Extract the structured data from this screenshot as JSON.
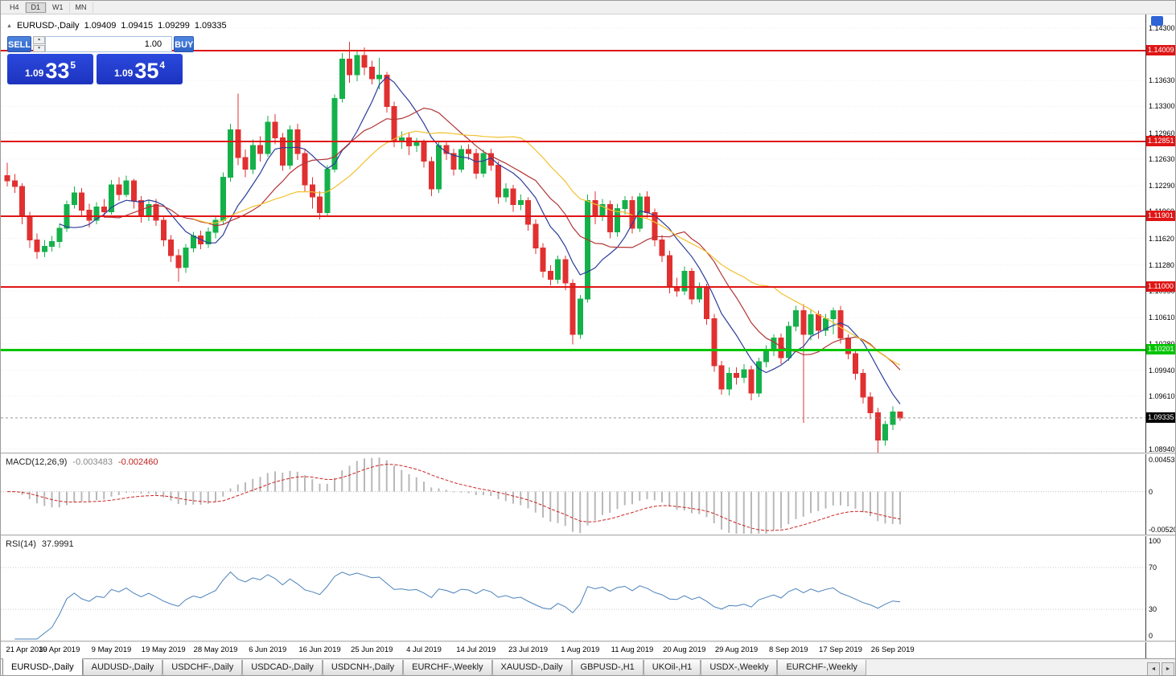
{
  "toolbar": {
    "buttons": [
      {
        "label": "H4",
        "active": false
      },
      {
        "label": "D1",
        "active": true
      },
      {
        "label": "W1",
        "active": false
      },
      {
        "label": "MN",
        "active": false
      }
    ]
  },
  "quote_header": {
    "collapse_icon": "▲",
    "symbol": "EURUSD-,Daily",
    "open": "1.09409",
    "high": "1.09415",
    "low": "1.09299",
    "close": "1.09335"
  },
  "trade_panel": {
    "sell_label": "SELL",
    "buy_label": "BUY",
    "volume": "1.00",
    "spin_up": "▲",
    "spin_down": "▼",
    "sell_price": {
      "prefix": "1.09",
      "big": "33",
      "pip": "5"
    },
    "buy_price": {
      "prefix": "1.09",
      "big": "35",
      "pip": "4"
    }
  },
  "colors": {
    "bull": "#14b14b",
    "bear": "#e13030",
    "macd_hist": "#b8b8b8",
    "macd_signal": "#cc2222",
    "rsi": "#4a81bb",
    "grid": "#ededed"
  },
  "chart_data": {
    "type": "candlestick",
    "title": "EURUSD-,Daily",
    "x_labels": [
      "21 Apr 2019",
      "30 Apr 2019",
      "9 May 2019",
      "19 May 2019",
      "28 May 2019",
      "6 Jun 2019",
      "16 Jun 2019",
      "25 Jun 2019",
      "4 Jul 2019",
      "14 Jul 2019",
      "23 Jul 2019",
      "1 Aug 2019",
      "11 Aug 2019",
      "20 Aug 2019",
      "29 Aug 2019",
      "8 Sep 2019",
      "17 Sep 2019",
      "26 Sep 2019"
    ],
    "candles_per_label": 7,
    "y_axis_labels": [
      "1.14300",
      "1.13630",
      "1.13300",
      "1.12960",
      "1.12630",
      "1.12290",
      "1.11960",
      "1.11620",
      "1.11280",
      "1.10950",
      "1.10610",
      "1.10280",
      "1.09940",
      "1.09610",
      "1.08940"
    ],
    "y_range": [
      1.08894,
      1.1447
    ],
    "hlines": [
      {
        "price": 1.14009,
        "label": "1.14009",
        "color": "#e01515",
        "width": 2,
        "role": "resistance-line"
      },
      {
        "price": 1.12851,
        "label": "1.12851",
        "color": "#e01515",
        "width": 2,
        "role": "resistance-line"
      },
      {
        "price": 1.11901,
        "label": "1.11901",
        "color": "#e01515",
        "width": 2,
        "role": "resistance-line"
      },
      {
        "price": 1.11,
        "label": "1.11000",
        "color": "#e01515",
        "width": 2,
        "role": "resistance-line"
      },
      {
        "price": 1.10201,
        "label": "1.10201",
        "color": "#00c400",
        "width": 3,
        "role": "support-line"
      }
    ],
    "current_price": {
      "value": 1.09335,
      "label": "1.09335"
    },
    "moving_averages": [
      {
        "period": 8,
        "color": "#2b3d9b"
      },
      {
        "period": 14,
        "color": "#b23535"
      },
      {
        "period": 26,
        "color": "#f2c12e"
      }
    ],
    "candles": [
      [
        1.1242,
        1.1258,
        1.1228,
        1.1235
      ],
      [
        1.1235,
        1.1244,
        1.122,
        1.1228
      ],
      [
        1.1228,
        1.1232,
        1.118,
        1.119
      ],
      [
        1.119,
        1.1196,
        1.115,
        1.116
      ],
      [
        1.116,
        1.1168,
        1.1136,
        1.1145
      ],
      [
        1.1145,
        1.116,
        1.1138,
        1.1152
      ],
      [
        1.1152,
        1.1165,
        1.1145,
        1.1158
      ],
      [
        1.1158,
        1.118,
        1.115,
        1.1175
      ],
      [
        1.1175,
        1.121,
        1.117,
        1.1205
      ],
      [
        1.1205,
        1.1228,
        1.12,
        1.122
      ],
      [
        1.122,
        1.1226,
        1.119,
        1.1198
      ],
      [
        1.1198,
        1.1206,
        1.1176,
        1.1185
      ],
      [
        1.1185,
        1.1208,
        1.118,
        1.1202
      ],
      [
        1.1202,
        1.1212,
        1.1188,
        1.1196
      ],
      [
        1.1196,
        1.1236,
        1.1192,
        1.123
      ],
      [
        1.123,
        1.124,
        1.121,
        1.1218
      ],
      [
        1.1218,
        1.1242,
        1.1214,
        1.1235
      ],
      [
        1.1235,
        1.1238,
        1.12,
        1.121
      ],
      [
        1.121,
        1.1216,
        1.1182,
        1.119
      ],
      [
        1.119,
        1.121,
        1.1184,
        1.1205
      ],
      [
        1.1205,
        1.1212,
        1.1178,
        1.1185
      ],
      [
        1.1185,
        1.119,
        1.1152,
        1.116
      ],
      [
        1.116,
        1.1166,
        1.1132,
        1.114
      ],
      [
        1.114,
        1.1148,
        1.1107,
        1.1125
      ],
      [
        1.1125,
        1.1155,
        1.1118,
        1.115
      ],
      [
        1.115,
        1.117,
        1.1144,
        1.1165
      ],
      [
        1.1165,
        1.1172,
        1.1148,
        1.1155
      ],
      [
        1.1155,
        1.1176,
        1.115,
        1.117
      ],
      [
        1.117,
        1.119,
        1.1162,
        1.1185
      ],
      [
        1.1185,
        1.1246,
        1.118,
        1.124
      ],
      [
        1.124,
        1.1308,
        1.1234,
        1.13
      ],
      [
        1.13,
        1.1346,
        1.1255,
        1.1265
      ],
      [
        1.1265,
        1.1275,
        1.124,
        1.125
      ],
      [
        1.125,
        1.1288,
        1.1244,
        1.128
      ],
      [
        1.128,
        1.1292,
        1.126,
        1.127
      ],
      [
        1.127,
        1.1318,
        1.1266,
        1.131
      ],
      [
        1.131,
        1.132,
        1.1282,
        1.129
      ],
      [
        1.129,
        1.1296,
        1.1248,
        1.1255
      ],
      [
        1.1255,
        1.1306,
        1.125,
        1.13
      ],
      [
        1.13,
        1.1308,
        1.1262,
        1.127
      ],
      [
        1.127,
        1.1276,
        1.1222,
        1.123
      ],
      [
        1.123,
        1.124,
        1.12,
        1.1215
      ],
      [
        1.1215,
        1.1222,
        1.1186,
        1.1195
      ],
      [
        1.1195,
        1.1255,
        1.119,
        1.125
      ],
      [
        1.125,
        1.1345,
        1.1246,
        1.134
      ],
      [
        1.134,
        1.1398,
        1.1335,
        1.139
      ],
      [
        1.139,
        1.1412,
        1.136,
        1.137
      ],
      [
        1.137,
        1.14,
        1.1362,
        1.1395
      ],
      [
        1.1395,
        1.1405,
        1.137,
        1.138
      ],
      [
        1.138,
        1.1388,
        1.1358,
        1.1365
      ],
      [
        1.1365,
        1.1392,
        1.1352,
        1.137
      ],
      [
        1.137,
        1.1374,
        1.1322,
        1.133
      ],
      [
        1.133,
        1.1336,
        1.1278,
        1.1285
      ],
      [
        1.1285,
        1.1298,
        1.1276,
        1.129
      ],
      [
        1.129,
        1.1296,
        1.1268,
        1.128
      ],
      [
        1.128,
        1.129,
        1.1272,
        1.1285
      ],
      [
        1.1285,
        1.1288,
        1.1252,
        1.126
      ],
      [
        1.126,
        1.1266,
        1.1216,
        1.1225
      ],
      [
        1.1225,
        1.1286,
        1.122,
        1.128
      ],
      [
        1.128,
        1.1286,
        1.1262,
        1.127
      ],
      [
        1.127,
        1.1276,
        1.1242,
        1.125
      ],
      [
        1.125,
        1.128,
        1.1246,
        1.1275
      ],
      [
        1.1275,
        1.1282,
        1.1262,
        1.127
      ],
      [
        1.127,
        1.1276,
        1.1238,
        1.1245
      ],
      [
        1.1245,
        1.1275,
        1.124,
        1.127
      ],
      [
        1.127,
        1.1276,
        1.1248,
        1.1255
      ],
      [
        1.1255,
        1.126,
        1.1206,
        1.1215
      ],
      [
        1.1215,
        1.1232,
        1.1208,
        1.1225
      ],
      [
        1.1225,
        1.123,
        1.1196,
        1.1205
      ],
      [
        1.1205,
        1.1218,
        1.1198,
        1.121
      ],
      [
        1.121,
        1.1214,
        1.1172,
        1.118
      ],
      [
        1.118,
        1.1186,
        1.1142,
        1.115
      ],
      [
        1.115,
        1.1156,
        1.1112,
        1.112
      ],
      [
        1.112,
        1.1128,
        1.1102,
        1.111
      ],
      [
        1.111,
        1.114,
        1.1104,
        1.1135
      ],
      [
        1.1135,
        1.114,
        1.1096,
        1.1105
      ],
      [
        1.1105,
        1.111,
        1.1027,
        1.104
      ],
      [
        1.104,
        1.109,
        1.1034,
        1.1085
      ],
      [
        1.1085,
        1.1218,
        1.108,
        1.121
      ],
      [
        1.121,
        1.1222,
        1.118,
        1.119
      ],
      [
        1.119,
        1.1212,
        1.1184,
        1.1205
      ],
      [
        1.1205,
        1.121,
        1.1162,
        1.117
      ],
      [
        1.117,
        1.1206,
        1.1164,
        1.12
      ],
      [
        1.12,
        1.1216,
        1.1192,
        1.121
      ],
      [
        1.121,
        1.1216,
        1.1168,
        1.1175
      ],
      [
        1.1175,
        1.122,
        1.117,
        1.1215
      ],
      [
        1.1215,
        1.1222,
        1.1188,
        1.1195
      ],
      [
        1.1195,
        1.12,
        1.1152,
        1.116
      ],
      [
        1.116,
        1.1166,
        1.1132,
        1.114
      ],
      [
        1.114,
        1.1146,
        1.1092,
        1.11
      ],
      [
        1.11,
        1.1112,
        1.1088,
        1.1095
      ],
      [
        1.1095,
        1.1126,
        1.109,
        1.112
      ],
      [
        1.112,
        1.1124,
        1.1078,
        1.1085
      ],
      [
        1.1085,
        1.1106,
        1.108,
        1.11
      ],
      [
        1.11,
        1.1104,
        1.1052,
        1.106
      ],
      [
        1.106,
        1.1066,
        1.0992,
        1.1
      ],
      [
        1.1,
        1.1006,
        1.0963,
        1.097
      ],
      [
        1.097,
        1.0998,
        1.0962,
        1.099
      ],
      [
        1.099,
        1.0998,
        1.0976,
        1.0985
      ],
      [
        1.0985,
        1.1002,
        1.0978,
        1.0995
      ],
      [
        1.0995,
        1.1,
        1.0956,
        1.0965
      ],
      [
        1.0965,
        1.101,
        1.096,
        1.1005
      ],
      [
        1.1005,
        1.1026,
        1.0998,
        1.102
      ],
      [
        1.102,
        1.104,
        1.1012,
        1.1035
      ],
      [
        1.1035,
        1.1041,
        1.1002,
        1.101
      ],
      [
        1.101,
        1.1056,
        1.1006,
        1.105
      ],
      [
        1.105,
        1.1076,
        1.1044,
        1.107
      ],
      [
        1.107,
        1.1078,
        1.0927,
        1.104
      ],
      [
        1.104,
        1.1072,
        1.1032,
        1.1065
      ],
      [
        1.1065,
        1.107,
        1.1034,
        1.1045
      ],
      [
        1.1045,
        1.1066,
        1.1038,
        1.106
      ],
      [
        1.106,
        1.1074,
        1.104,
        1.107
      ],
      [
        1.107,
        1.1076,
        1.1028,
        1.1035
      ],
      [
        1.1035,
        1.104,
        1.1008,
        1.1015
      ],
      [
        1.1015,
        1.102,
        1.0982,
        1.099
      ],
      [
        1.099,
        1.0996,
        1.0952,
        1.096
      ],
      [
        1.096,
        1.0966,
        1.0932,
        1.094
      ],
      [
        1.094,
        1.0946,
        1.0889,
        1.0905
      ],
      [
        1.0905,
        1.093,
        1.0898,
        1.0925
      ],
      [
        1.0925,
        1.0948,
        1.0918,
        1.0941
      ],
      [
        1.09409,
        1.09415,
        1.09299,
        1.09335
      ]
    ],
    "macd": {
      "name": "MACD(12,26,9)",
      "fast": 12,
      "slow": 26,
      "signal": 9,
      "value": "-0.003483",
      "signal_value": "-0.002460",
      "scale": {
        "top": "0.004536",
        "zero": "0",
        "bottom": "-0.005205"
      },
      "range": [
        -0.005205,
        0.004536
      ]
    },
    "rsi": {
      "name": "RSI(14)",
      "period": 14,
      "value": "37.9991",
      "levels": [
        70,
        30
      ],
      "scale": [
        "100",
        "70",
        "30",
        "0"
      ],
      "range": [
        0,
        100
      ]
    }
  },
  "tabs": {
    "scroll_left": "◄",
    "scroll_right": "►",
    "items": [
      {
        "label": "EURUSD-,Daily",
        "active": true
      },
      {
        "label": "AUDUSD-,Daily",
        "active": false
      },
      {
        "label": "USDCHF-,Daily",
        "active": false
      },
      {
        "label": "USDCAD-,Daily",
        "active": false
      },
      {
        "label": "USDCNH-,Daily",
        "active": false
      },
      {
        "label": "EURCHF-,Weekly",
        "active": false
      },
      {
        "label": "XAUUSD-,Daily",
        "active": false
      },
      {
        "label": "GBPUSD-,H1",
        "active": false
      },
      {
        "label": "UKOil-,H1",
        "active": false
      },
      {
        "label": "USDX-,Weekly",
        "active": false
      },
      {
        "label": "EURCHF-,Weekly",
        "active": false
      }
    ]
  }
}
